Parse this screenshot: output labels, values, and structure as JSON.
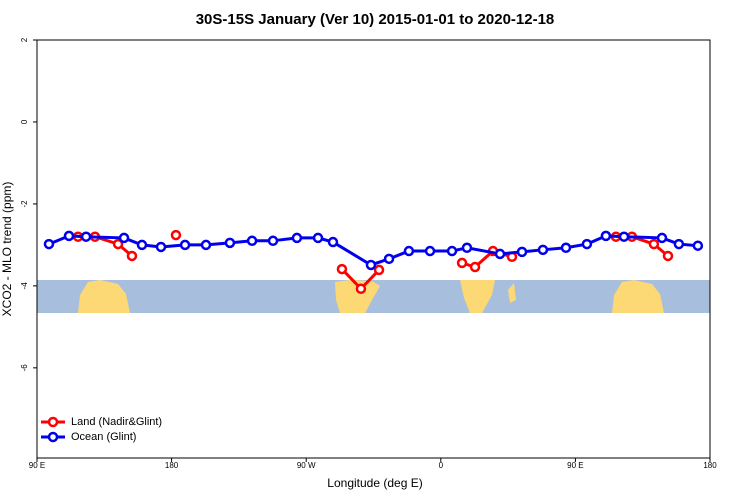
{
  "chart_data": {
    "type": "line",
    "title": "30S-15S January (Ver 10)   2015-01-01 to 2020-12-18",
    "xlabel": "Longitude (deg E)",
    "ylabel": "XCO2 - MLO trend (ppm)",
    "xlim": [
      90,
      540
    ],
    "xticks": [
      {
        "value": 90,
        "label": "90 E"
      },
      180,
      {
        "value": 270,
        "label": "90 W"
      },
      {
        "value": 360,
        "label": "0"
      },
      {
        "value": 450,
        "label": "90 E"
      },
      {
        "value": 540,
        "label": "180"
      }
    ],
    "ylim": [
      -8.2,
      2
    ],
    "yticks": [
      -6,
      -4,
      -2,
      0,
      2
    ],
    "legend": "bottom-left",
    "series": [
      {
        "name": "Land (Nadir&Glint)",
        "color": "#ff0000",
        "x": [
          117.4,
          128.8,
          144.2,
          153.5,
          null,
          182.9,
          null,
          293.9,
          306.6,
          318.7,
          null,
          374.2,
          382.9,
          394.9,
          407.6,
          null,
          477.1,
          487.8,
          502.5,
          511.9
        ],
        "values": [
          -2.8,
          -2.8,
          -2.98,
          -3.27,
          null,
          -2.76,
          null,
          -3.59,
          -4.07,
          -3.61,
          null,
          -3.44,
          -3.54,
          -3.15,
          -3.29,
          null,
          -2.8,
          -2.8,
          -2.98,
          -3.27
        ]
      },
      {
        "name": "Ocean (Glint)",
        "color": "#0000ee",
        "x": [
          98,
          111.4,
          122.8,
          148.2,
          160.2,
          172.9,
          189,
          203,
          219,
          233.8,
          247.8,
          263.8,
          277.9,
          287.9,
          313.3,
          325.4,
          338.7,
          352.8,
          367.5,
          377.5,
          399.6,
          414.3,
          428.3,
          443.7,
          457.7,
          470.4,
          482.5,
          507.9,
          519.2,
          531.9
        ],
        "values": [
          -2.98,
          -2.78,
          -2.8,
          -2.83,
          -3.0,
          -3.05,
          -3.0,
          -3.0,
          -2.95,
          -2.9,
          -2.9,
          -2.83,
          -2.83,
          -2.93,
          -3.49,
          -3.34,
          -3.15,
          -3.15,
          -3.15,
          -3.07,
          -3.22,
          -3.17,
          -3.12,
          -3.07,
          -2.98,
          -2.78,
          -2.8,
          -2.83,
          -2.98,
          -3.02
        ]
      }
    ]
  }
}
